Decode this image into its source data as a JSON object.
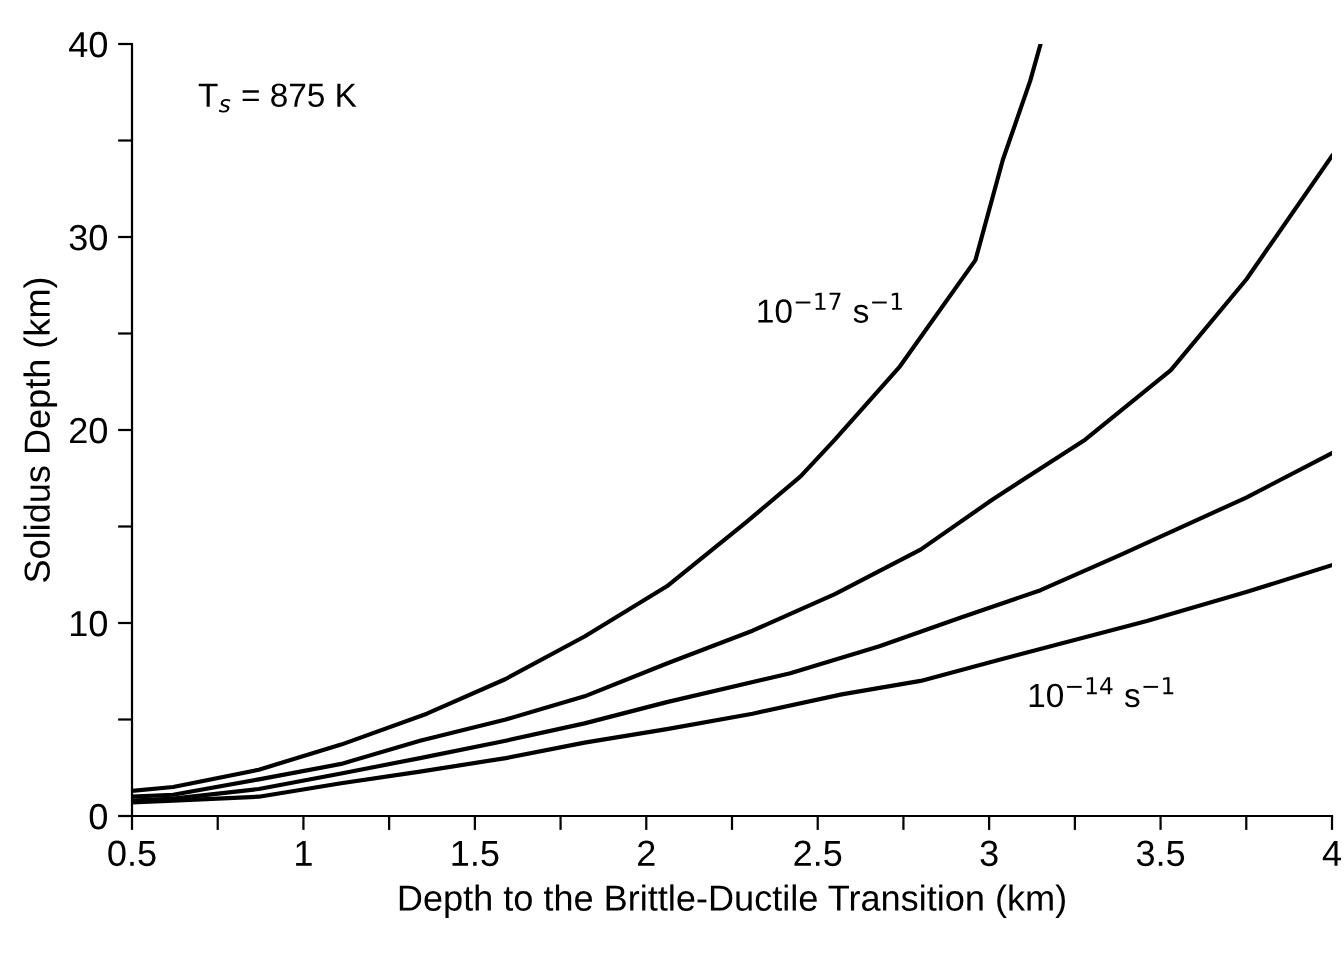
{
  "chart_data": {
    "type": "line",
    "xlabel": "Depth to the Brittle-Ductile Transition (km)",
    "ylabel": "Solidus Depth (km)",
    "xlim": [
      0.5,
      4
    ],
    "ylim": [
      0,
      40
    ],
    "xticks": [
      0.5,
      {
        "value": 0.75,
        "label": null
      },
      1,
      {
        "value": 1.25,
        "label": null
      },
      1.5,
      {
        "value": 1.75,
        "label": null
      },
      2,
      {
        "value": 2.25,
        "label": null
      },
      2.5,
      {
        "value": 2.75,
        "label": null
      },
      3,
      {
        "value": 3.25,
        "label": null
      },
      3.5,
      {
        "value": 3.75,
        "label": null
      },
      4
    ],
    "yticks": [
      0,
      {
        "value": 5,
        "label": null
      },
      10,
      {
        "value": 15,
        "label": null
      },
      20,
      {
        "value": 25,
        "label": null
      },
      30,
      {
        "value": 35,
        "label": null
      },
      40
    ],
    "grid": false,
    "legend": false,
    "marker": "none",
    "line_style": "solid",
    "series": [
      {
        "color": "#000000",
        "x": [
          0.5,
          0.62,
          0.87,
          1.11,
          1.36,
          1.59,
          1.82,
          2.06,
          2.29,
          2.45,
          2.55,
          2.74,
          2.96,
          3.04,
          3.12,
          3.15
        ],
        "values": [
          1.3,
          1.5,
          2.4,
          3.7,
          5.3,
          7.1,
          9.3,
          11.9,
          15.2,
          17.6,
          19.5,
          23.3,
          28.8,
          34,
          38.1,
          40
        ]
      },
      {
        "color": "#000000",
        "x": [
          0.5,
          0.62,
          0.87,
          1.11,
          1.34,
          1.59,
          1.82,
          2.06,
          2.31,
          2.55,
          2.8,
          3.01,
          3.28,
          3.53,
          3.75,
          4
        ],
        "values": [
          1.0,
          1.1,
          1.9,
          2.7,
          3.9,
          5.0,
          6.2,
          7.9,
          9.6,
          11.5,
          13.8,
          16.4,
          19.5,
          23.1,
          27.8,
          34.2
        ]
      },
      {
        "color": "#000000",
        "x": [
          0.5,
          0.62,
          0.87,
          1.11,
          1.34,
          1.59,
          1.82,
          2.06,
          2.42,
          2.68,
          2.92,
          3.15,
          3.38,
          3.75,
          4
        ],
        "values": [
          0.8,
          0.9,
          1.4,
          2.2,
          3.0,
          3.9,
          4.8,
          5.9,
          7.4,
          8.8,
          10.3,
          11.7,
          13.5,
          16.5,
          18.8
        ]
      },
      {
        "color": "#000000",
        "x": [
          0.5,
          0.62,
          0.87,
          1.11,
          1.34,
          1.59,
          1.82,
          2.06,
          2.31,
          2.57,
          2.8,
          3.03,
          3.46,
          3.75,
          4
        ],
        "values": [
          0.7,
          0.8,
          1.0,
          1.7,
          2.3,
          3.0,
          3.8,
          4.5,
          5.3,
          6.3,
          7.0,
          8.1,
          10.1,
          11.6,
          13.0
        ]
      }
    ],
    "annotations": [
      "T$_{s}$ = 875 K",
      {
        "text": "10$^{−17}$ s$^{−1}$",
        "x": 2.82,
        "y": 26
      },
      {
        "text": "10$^{−14}$ s$^{−1}$",
        "x": 3.03,
        "y": 8.1
      }
    ]
  }
}
